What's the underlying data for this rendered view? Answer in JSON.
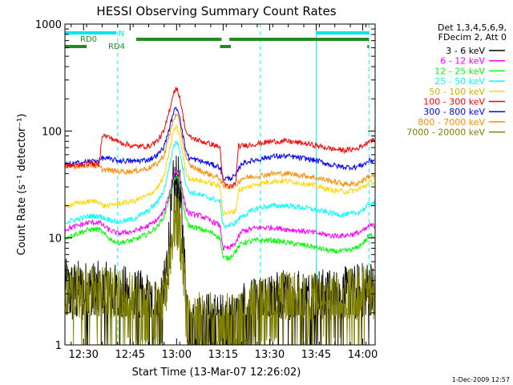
{
  "chart_data": {
    "type": "line",
    "title": "HESSI Observing Summary Count Rates",
    "xlabel": "Start Time (13-Mar-07 12:26:02)",
    "ylabel": "Count Rate (s⁻¹ detector⁻¹)",
    "y_scale": "log",
    "ylim": [
      1,
      1000
    ],
    "xlim_minutes_after_start": [
      -2,
      98
    ],
    "x_ticks": [
      {
        "label": "12:30",
        "minutes": 4
      },
      {
        "label": "12:45",
        "minutes": 19
      },
      {
        "label": "13:00",
        "minutes": 34
      },
      {
        "label": "13:15",
        "minutes": 49
      },
      {
        "label": "13:30",
        "minutes": 64
      },
      {
        "label": "13:45",
        "minutes": 79
      },
      {
        "label": "14:00",
        "minutes": 94
      }
    ],
    "y_ticks": [
      {
        "label": "1",
        "value": 1
      },
      {
        "label": "10",
        "value": 10
      },
      {
        "label": "100",
        "value": 100
      },
      {
        "label": "1000",
        "value": 1000
      }
    ],
    "legend_header": [
      "Det 1,3,4,5,6,9,",
      "FDecim 2, Att 0"
    ],
    "legend_placement": "right",
    "footer_date": "1-Dec-2009 12:57",
    "time_markers": [
      {
        "minutes": -2,
        "color": "#00ffff",
        "style": "solid"
      },
      {
        "minutes": 15,
        "color": "#00ffff",
        "style": "dashed"
      },
      {
        "minutes": 61,
        "color": "#00ffff",
        "style": "dashed"
      },
      {
        "minutes": 79,
        "color": "#00ffff",
        "style": "solid"
      },
      {
        "minutes": 96,
        "color": "#00ffff",
        "style": "dashed"
      }
    ],
    "flag_bars": [
      {
        "label": "N",
        "color": "#00e5ee",
        "segments": [
          [
            -2,
            14.5
          ],
          [
            79,
            96
          ]
        ]
      },
      {
        "label": "RD0",
        "color": "#228b22",
        "segments": [
          [
            21,
            48.5
          ],
          [
            51,
            96
          ]
        ]
      },
      {
        "label": "RD4",
        "color": "#228b22",
        "segments": [
          [
            -2,
            5
          ],
          [
            48,
            51.5
          ],
          [
            95.5,
            96
          ]
        ]
      }
    ],
    "series": [
      {
        "name": "3 - 6 keV",
        "color": "#000000",
        "kind": "noisy",
        "points": [
          [
            -2,
            3.1
          ],
          [
            6,
            3.0
          ],
          [
            15,
            2.8
          ],
          [
            25,
            2.3
          ],
          [
            29,
            2.0
          ],
          [
            30,
            3.0
          ],
          [
            32,
            12
          ],
          [
            33,
            28
          ],
          [
            34,
            33
          ],
          [
            35,
            25
          ],
          [
            36,
            10
          ],
          [
            37,
            3
          ],
          [
            38,
            1.5
          ],
          [
            40,
            1.5
          ],
          [
            48,
            1.5
          ],
          [
            52,
            1.6
          ],
          [
            60,
            2.1
          ],
          [
            66,
            2.4
          ],
          [
            72,
            2.6
          ],
          [
            80,
            2.5
          ],
          [
            88,
            2.6
          ],
          [
            94,
            2.9
          ],
          [
            96,
            3.1
          ]
        ]
      },
      {
        "name": "6 - 12 keV",
        "color": "#ff00ff",
        "points": [
          [
            -2,
            12
          ],
          [
            2,
            13
          ],
          [
            6,
            14
          ],
          [
            9,
            14
          ],
          [
            12,
            12
          ],
          [
            15,
            11
          ],
          [
            20,
            11.5
          ],
          [
            25,
            13
          ],
          [
            28,
            15
          ],
          [
            30,
            18
          ],
          [
            32,
            28
          ],
          [
            33,
            38
          ],
          [
            34,
            43
          ],
          [
            35,
            38
          ],
          [
            36,
            26
          ],
          [
            37,
            19
          ],
          [
            38,
            17
          ],
          [
            42,
            16
          ],
          [
            46,
            14
          ],
          [
            48,
            13
          ],
          [
            49,
            8
          ],
          [
            51,
            8
          ],
          [
            53,
            9
          ],
          [
            55,
            11.5
          ],
          [
            60,
            12.5
          ],
          [
            65,
            12.5
          ],
          [
            70,
            12
          ],
          [
            76,
            11.5
          ],
          [
            80,
            11
          ],
          [
            84,
            10.5
          ],
          [
            88,
            10.5
          ],
          [
            92,
            11
          ],
          [
            95,
            12
          ],
          [
            96,
            13
          ]
        ]
      },
      {
        "name": "12 - 25 keV",
        "color": "#00ff00",
        "points": [
          [
            -2,
            10
          ],
          [
            2,
            11
          ],
          [
            6,
            12
          ],
          [
            9,
            12
          ],
          [
            12,
            10
          ],
          [
            15,
            9
          ],
          [
            20,
            9.5
          ],
          [
            25,
            11
          ],
          [
            28,
            13
          ],
          [
            30,
            16
          ],
          [
            32,
            26
          ],
          [
            33,
            34
          ],
          [
            34,
            38
          ],
          [
            35,
            33
          ],
          [
            36,
            22
          ],
          [
            37,
            15
          ],
          [
            38,
            13
          ],
          [
            42,
            12
          ],
          [
            46,
            11
          ],
          [
            48,
            10
          ],
          [
            49,
            6.5
          ],
          [
            51,
            6.5
          ],
          [
            53,
            7.5
          ],
          [
            55,
            9
          ],
          [
            60,
            9.5
          ],
          [
            65,
            9.5
          ],
          [
            70,
            9
          ],
          [
            76,
            8.5
          ],
          [
            80,
            8
          ],
          [
            84,
            7.5
          ],
          [
            88,
            7.5
          ],
          [
            92,
            8
          ],
          [
            95,
            9.5
          ],
          [
            96,
            10.5
          ]
        ]
      },
      {
        "name": "25 - 50 keV",
        "color": "#00ffff",
        "points": [
          [
            -2,
            14
          ],
          [
            2,
            15
          ],
          [
            6,
            16
          ],
          [
            9,
            16
          ],
          [
            12,
            15
          ],
          [
            15,
            14
          ],
          [
            20,
            15
          ],
          [
            25,
            18
          ],
          [
            28,
            22
          ],
          [
            30,
            28
          ],
          [
            32,
            52
          ],
          [
            33,
            72
          ],
          [
            34,
            80
          ],
          [
            35,
            68
          ],
          [
            36,
            46
          ],
          [
            37,
            32
          ],
          [
            38,
            27
          ],
          [
            42,
            25
          ],
          [
            46,
            23
          ],
          [
            48,
            22
          ],
          [
            49,
            13
          ],
          [
            51,
            13
          ],
          [
            53,
            14
          ],
          [
            55,
            16
          ],
          [
            60,
            19
          ],
          [
            65,
            20
          ],
          [
            70,
            20
          ],
          [
            76,
            19
          ],
          [
            80,
            18
          ],
          [
            84,
            17
          ],
          [
            88,
            16.5
          ],
          [
            92,
            17
          ],
          [
            95,
            19
          ],
          [
            96,
            21
          ]
        ]
      },
      {
        "name": "50 - 100 keV",
        "color": "#ffd700",
        "points": [
          [
            -2,
            20
          ],
          [
            2,
            21
          ],
          [
            6,
            22
          ],
          [
            9,
            22
          ],
          [
            10,
            20
          ],
          [
            12,
            20
          ],
          [
            15,
            21
          ],
          [
            20,
            22
          ],
          [
            25,
            25
          ],
          [
            28,
            30
          ],
          [
            30,
            38
          ],
          [
            32,
            72
          ],
          [
            33,
            100
          ],
          [
            34,
            110
          ],
          [
            35,
            92
          ],
          [
            36,
            60
          ],
          [
            37,
            42
          ],
          [
            38,
            36
          ],
          [
            42,
            34
          ],
          [
            46,
            32
          ],
          [
            48,
            30
          ],
          [
            49,
            17
          ],
          [
            51,
            17
          ],
          [
            53,
            18
          ],
          [
            54,
            28
          ],
          [
            60,
            32
          ],
          [
            65,
            34
          ],
          [
            70,
            34
          ],
          [
            76,
            32
          ],
          [
            80,
            30
          ],
          [
            84,
            28
          ],
          [
            88,
            27
          ],
          [
            92,
            28
          ],
          [
            95,
            31
          ],
          [
            96,
            33
          ]
        ]
      },
      {
        "name": "100 - 300 keV",
        "color": "#ff0000",
        "points": [
          [
            -2,
            47
          ],
          [
            2,
            48
          ],
          [
            6,
            50
          ],
          [
            9,
            48
          ],
          [
            10,
            92
          ],
          [
            12,
            88
          ],
          [
            15,
            80
          ],
          [
            20,
            72
          ],
          [
            25,
            72
          ],
          [
            28,
            82
          ],
          [
            30,
            100
          ],
          [
            32,
            170
          ],
          [
            33,
            230
          ],
          [
            34,
            250
          ],
          [
            35,
            210
          ],
          [
            36,
            140
          ],
          [
            37,
            100
          ],
          [
            38,
            88
          ],
          [
            42,
            80
          ],
          [
            46,
            74
          ],
          [
            48,
            70
          ],
          [
            49,
            32
          ],
          [
            51,
            30
          ],
          [
            53,
            32
          ],
          [
            54,
            72
          ],
          [
            60,
            76
          ],
          [
            65,
            80
          ],
          [
            70,
            80
          ],
          [
            76,
            76
          ],
          [
            80,
            72
          ],
          [
            84,
            68
          ],
          [
            88,
            66
          ],
          [
            92,
            68
          ],
          [
            95,
            76
          ],
          [
            96,
            82
          ]
        ]
      },
      {
        "name": "300 - 800 keV",
        "color": "#0000ff",
        "points": [
          [
            -2,
            48
          ],
          [
            2,
            50
          ],
          [
            6,
            52
          ],
          [
            9,
            53
          ],
          [
            10,
            56
          ],
          [
            12,
            55
          ],
          [
            15,
            53
          ],
          [
            20,
            52
          ],
          [
            25,
            54
          ],
          [
            28,
            60
          ],
          [
            30,
            72
          ],
          [
            32,
            115
          ],
          [
            33,
            150
          ],
          [
            34,
            165
          ],
          [
            35,
            140
          ],
          [
            36,
            92
          ],
          [
            37,
            66
          ],
          [
            38,
            56
          ],
          [
            42,
            52
          ],
          [
            46,
            48
          ],
          [
            48,
            46
          ],
          [
            49,
            36
          ],
          [
            51,
            36
          ],
          [
            53,
            38
          ],
          [
            55,
            50
          ],
          [
            60,
            54
          ],
          [
            65,
            58
          ],
          [
            70,
            58
          ],
          [
            76,
            55
          ],
          [
            80,
            52
          ],
          [
            84,
            48
          ],
          [
            88,
            46
          ],
          [
            92,
            46
          ],
          [
            95,
            50
          ],
          [
            96,
            53
          ]
        ]
      },
      {
        "name": "800 - 7000 keV",
        "color": "#ff8c00",
        "points": [
          [
            -2,
            46
          ],
          [
            2,
            47
          ],
          [
            6,
            48
          ],
          [
            9,
            46
          ],
          [
            10,
            44
          ],
          [
            12,
            43
          ],
          [
            15,
            42
          ],
          [
            20,
            42
          ],
          [
            25,
            45
          ],
          [
            28,
            50
          ],
          [
            30,
            60
          ],
          [
            32,
            100
          ],
          [
            33,
            130
          ],
          [
            34,
            140
          ],
          [
            35,
            120
          ],
          [
            36,
            80
          ],
          [
            37,
            58
          ],
          [
            38,
            48
          ],
          [
            42,
            42
          ],
          [
            46,
            38
          ],
          [
            48,
            36
          ],
          [
            49,
            30
          ],
          [
            51,
            30
          ],
          [
            53,
            31
          ],
          [
            55,
            36
          ],
          [
            60,
            38
          ],
          [
            65,
            40
          ],
          [
            70,
            40
          ],
          [
            76,
            38
          ],
          [
            80,
            36
          ],
          [
            84,
            34
          ],
          [
            88,
            32
          ],
          [
            92,
            32
          ],
          [
            95,
            36
          ],
          [
            96,
            38
          ]
        ]
      },
      {
        "name": "7000 - 20000 keV",
        "color": "#808000",
        "kind": "noisy",
        "points": [
          [
            -2,
            3.0
          ],
          [
            6,
            2.8
          ],
          [
            15,
            2.6
          ],
          [
            25,
            2.1
          ],
          [
            29,
            1.8
          ],
          [
            30,
            2.5
          ],
          [
            32,
            8
          ],
          [
            33,
            13
          ],
          [
            34,
            15
          ],
          [
            35,
            12
          ],
          [
            36,
            6
          ],
          [
            37,
            2.5
          ],
          [
            38,
            1.5
          ],
          [
            40,
            1.5
          ],
          [
            48,
            1.5
          ],
          [
            52,
            1.6
          ],
          [
            60,
            2.0
          ],
          [
            66,
            2.3
          ],
          [
            72,
            2.5
          ],
          [
            80,
            2.3
          ],
          [
            88,
            2.4
          ],
          [
            94,
            2.7
          ],
          [
            96,
            3.0
          ]
        ]
      }
    ]
  }
}
